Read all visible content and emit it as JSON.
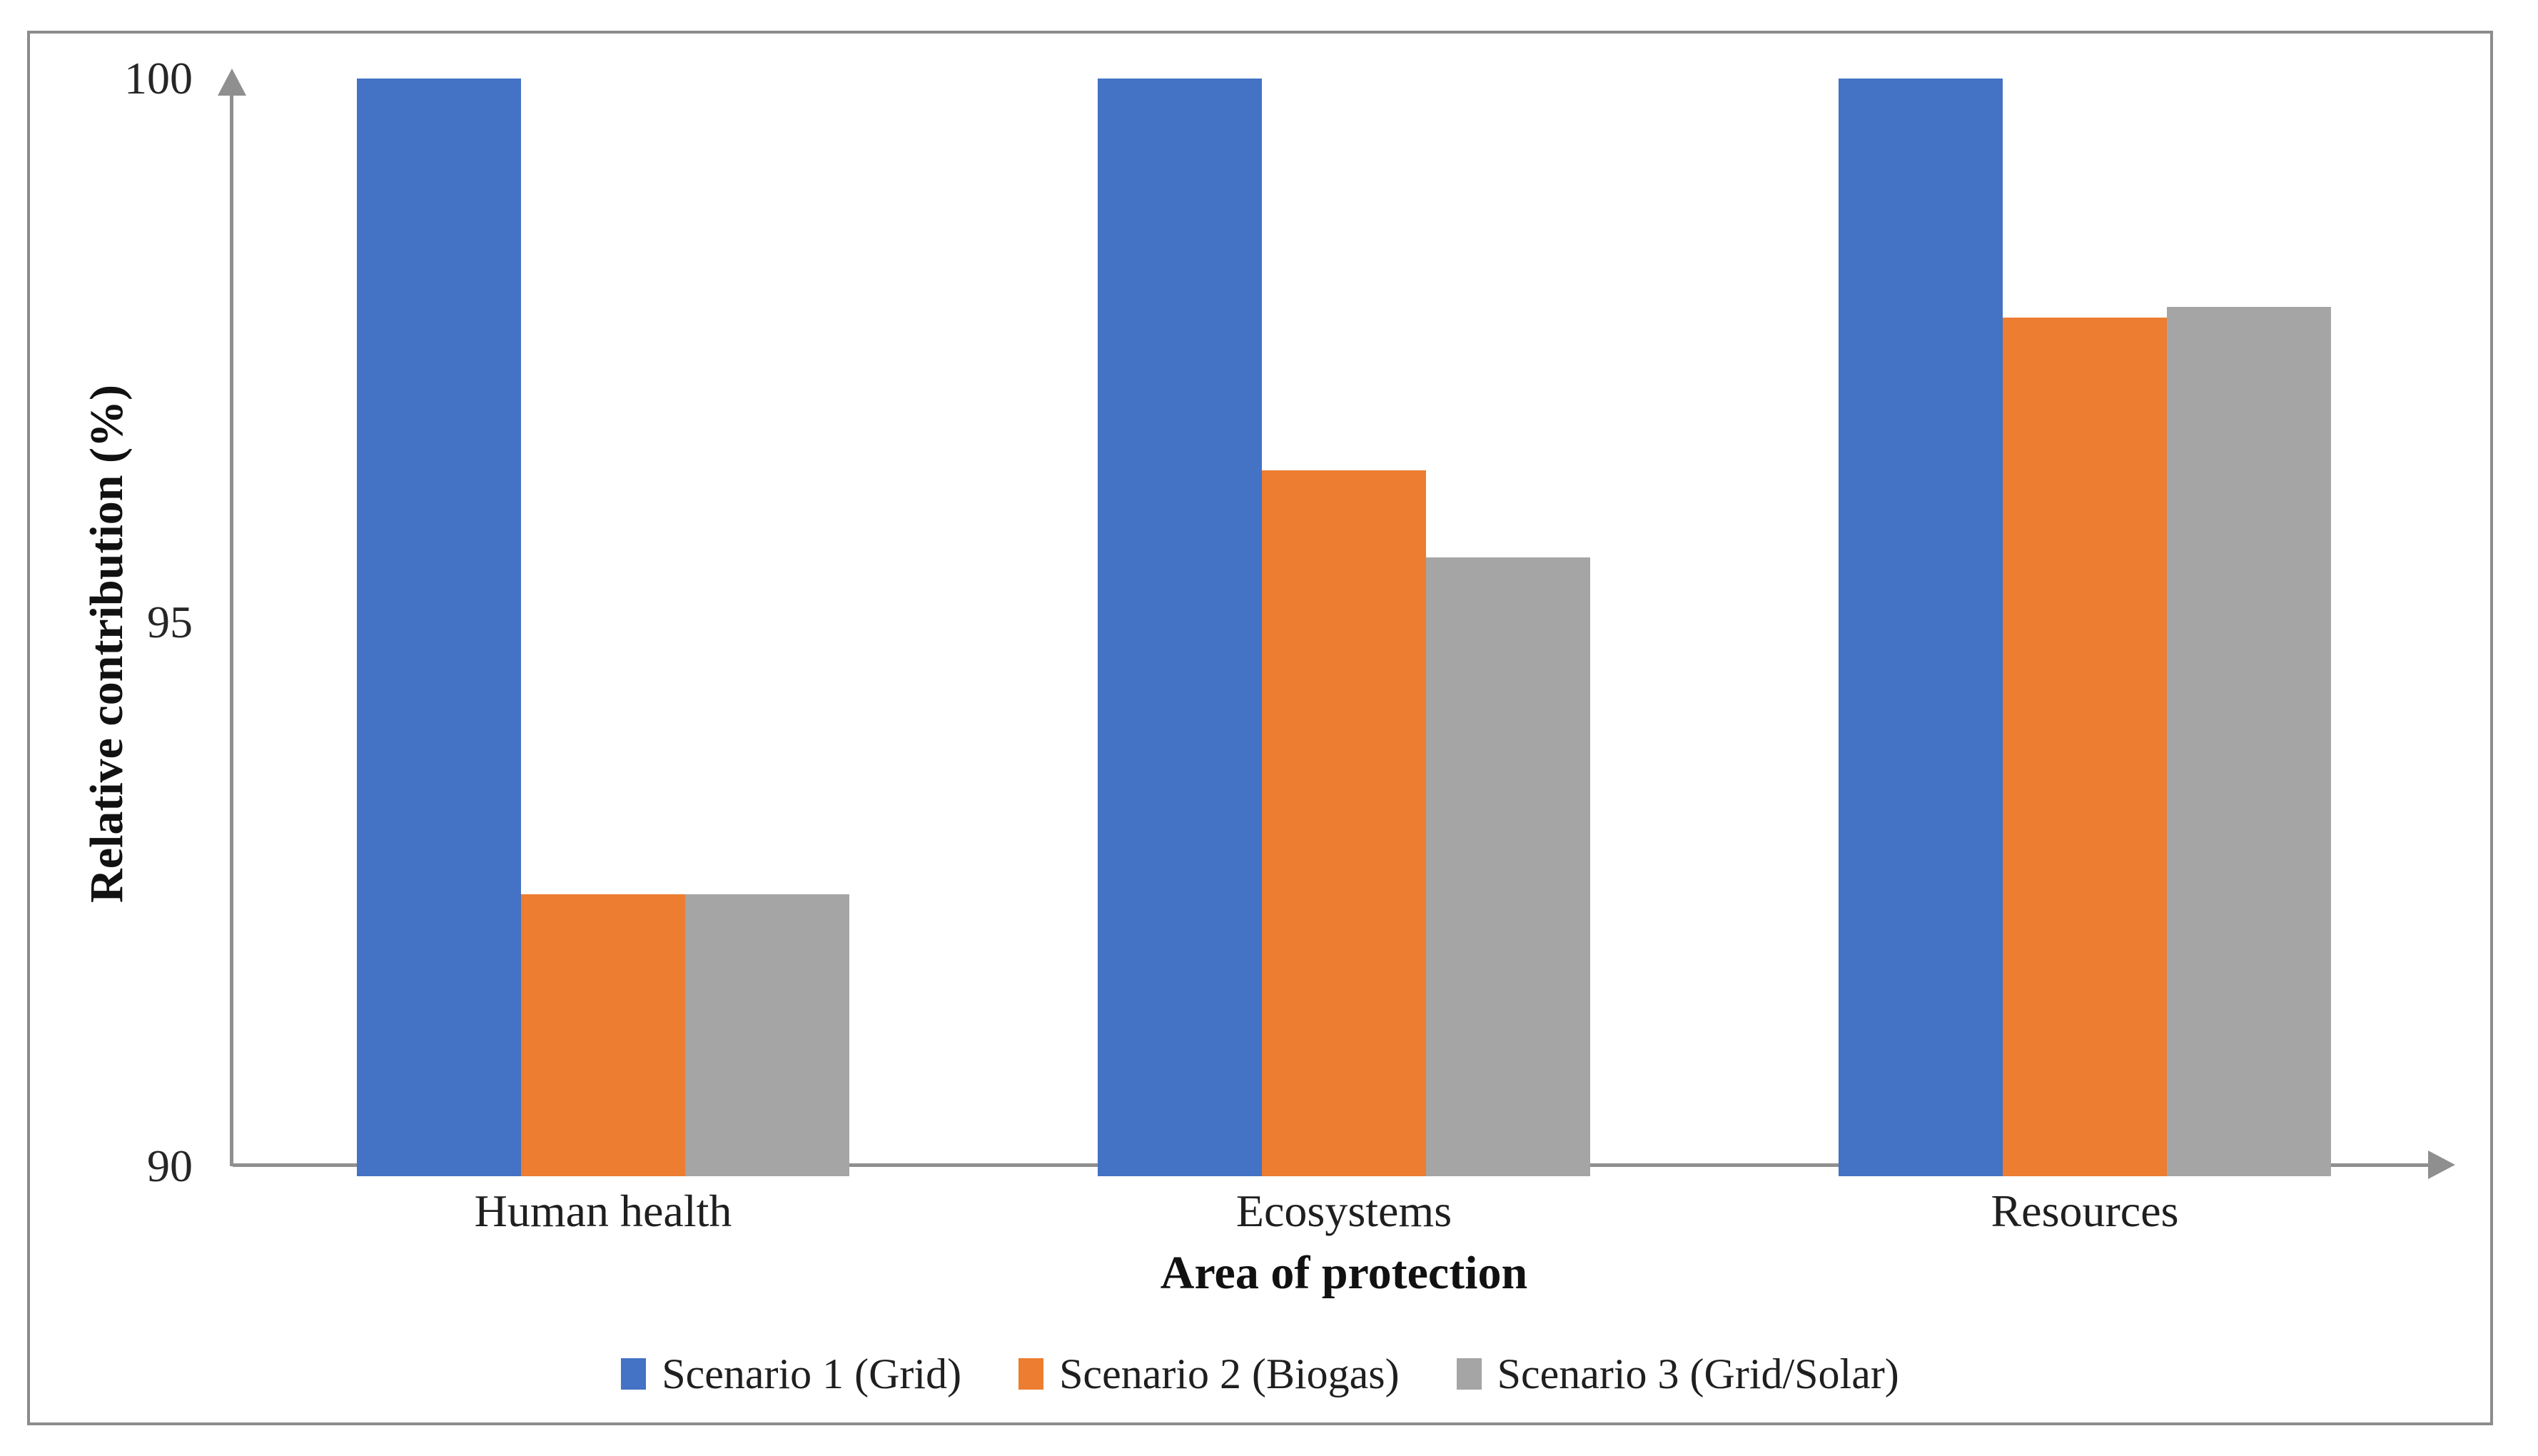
{
  "chart_data": {
    "type": "bar",
    "title": "",
    "categories": [
      "Human health",
      "Ecosystems",
      "Resources"
    ],
    "series": [
      {
        "name": "Scenario 1 (Grid)",
        "color": "#4472C4",
        "values": [
          100,
          100,
          100
        ]
      },
      {
        "name": "Scenario 2 (Biogas)",
        "color": "#ED7D31",
        "values": [
          92.5,
          96.4,
          97.8
        ]
      },
      {
        "name": "Scenario 3 (Grid/Solar)",
        "color": "#A5A5A5",
        "values": [
          92.5,
          95.6,
          97.9
        ]
      }
    ],
    "xlabel": "Area of protection",
    "ylabel": "Relative contribution (%)",
    "ylim": [
      90,
      100
    ],
    "yticks": [
      100,
      95,
      90
    ],
    "ytick_labels": [
      "100",
      "95",
      "90"
    ],
    "grid": false,
    "legend_position": "bottom",
    "axes_have_arrows": true,
    "colors": {
      "axis": "#8F8F8F",
      "frame": "#8C8C8C",
      "text": "#1F1F1F",
      "background": "#FFFFFF"
    }
  }
}
